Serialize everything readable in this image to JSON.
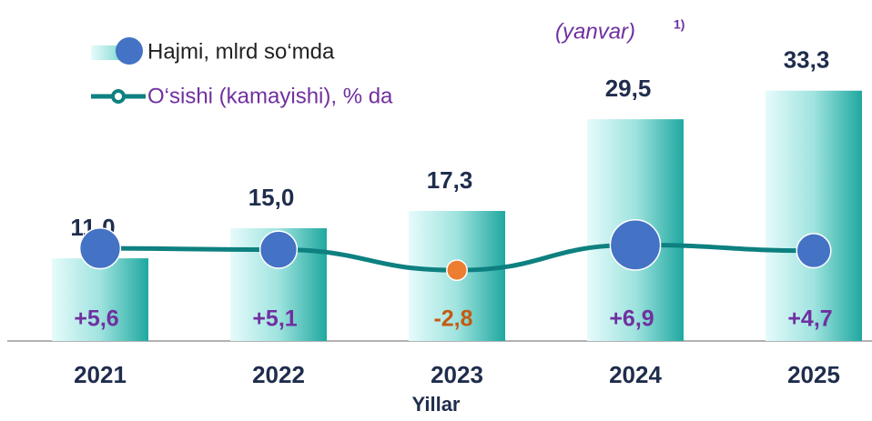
{
  "chart_data": {
    "type": "bar_line",
    "subtitle": "(yanvar)",
    "subtitle_note": "1)",
    "x_label": "Yillar",
    "categories": [
      "2021",
      "2022",
      "2023",
      "2024",
      "2025"
    ],
    "ylim": [
      0,
      45
    ],
    "y2lim": [
      -30,
      100
    ],
    "series": [
      {
        "name": "Hajmi, mlrd so‘mda",
        "type": "bar",
        "color": "#22b2aa",
        "label_color": "#1f2d4d",
        "values": [
          11.0,
          15.0,
          17.3,
          29.5,
          33.3
        ],
        "value_labels": [
          "11,0",
          "15,0",
          "17,3",
          "29,5",
          "33,3"
        ]
      },
      {
        "name": "O‘sishi (kamayishi), % da",
        "type": "line",
        "axis": "y2",
        "color": "#0e8080",
        "marker_color": "#4472c4",
        "negative_color": "#ed7d31",
        "label_color": "#7030a0",
        "negative_label_color": "#c55a11",
        "values": [
          5.6,
          5.1,
          -2.8,
          6.9,
          4.7
        ],
        "value_labels": [
          "+5,6",
          "+5,1",
          "-2,8",
          "+6,9",
          "+4,7"
        ]
      }
    ]
  }
}
